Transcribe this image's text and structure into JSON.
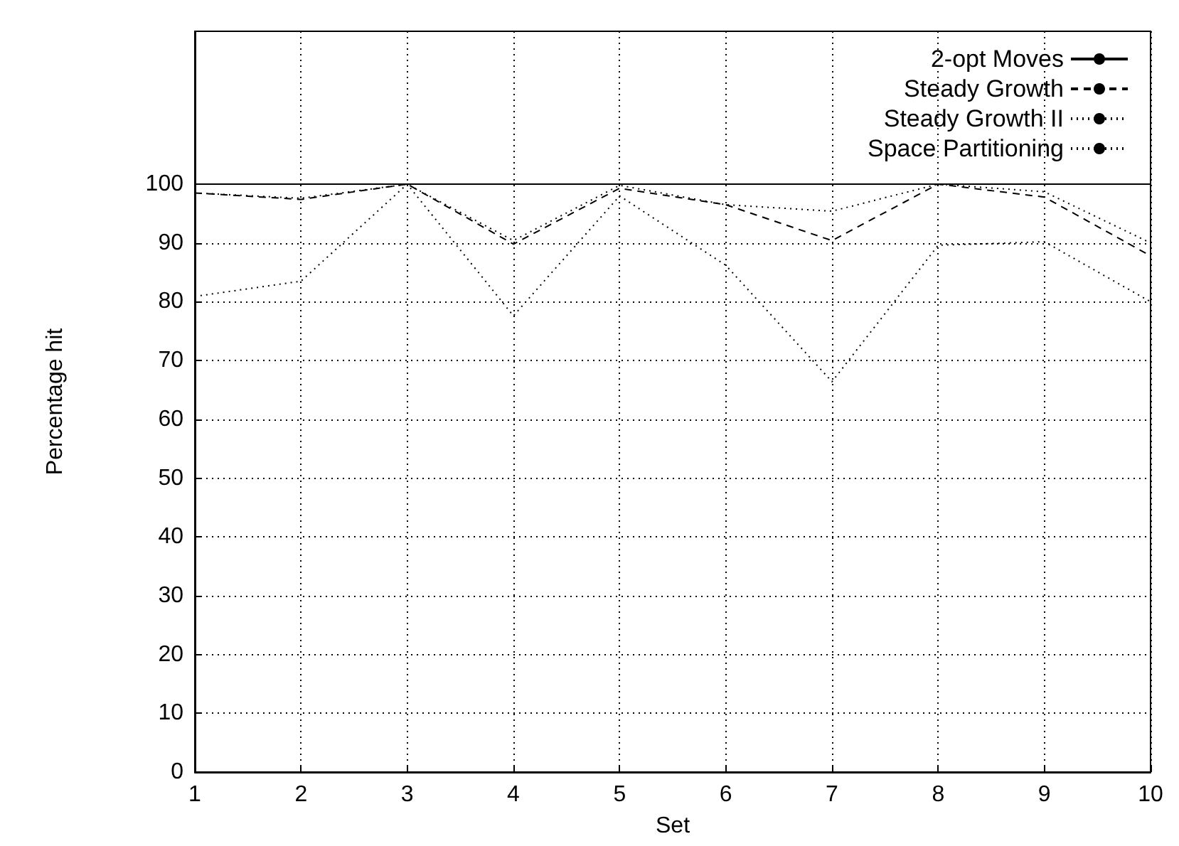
{
  "chart_data": {
    "type": "line",
    "xlabel": "Set",
    "ylabel": "Percentage hit",
    "x": [
      1,
      2,
      3,
      4,
      5,
      6,
      7,
      8,
      9,
      10
    ],
    "series": [
      {
        "name": "2-opt Moves",
        "color": "#000000",
        "line_style": "solid",
        "values": [
          100,
          100,
          100,
          100,
          100,
          100,
          100,
          100,
          100,
          100
        ]
      },
      {
        "name": "Steady Growth",
        "color": "#000000",
        "line_style": "dashed",
        "values": [
          98.5,
          97.4,
          100,
          89.8,
          99.3,
          96.5,
          90.4,
          100,
          97.8,
          87.8
        ]
      },
      {
        "name": "Steady Growth II",
        "color": "#000000",
        "line_style": "dotted",
        "values": [
          98.5,
          97.6,
          100,
          90.4,
          99.8,
          96.5,
          95.4,
          100,
          98.7,
          90
        ]
      },
      {
        "name": "Space Partitioning",
        "color": "#000000",
        "line_style": "dotted",
        "values": [
          80.9,
          83.5,
          100,
          77.6,
          98,
          86.2,
          66.4,
          89.6,
          90.2,
          80
        ]
      }
    ],
    "xlim": [
      1,
      10
    ],
    "xticks": [
      1,
      2,
      3,
      4,
      5,
      6,
      7,
      8,
      9,
      10
    ],
    "ylim": [
      0,
      126
    ],
    "yticks": [
      0,
      10,
      20,
      30,
      40,
      50,
      60,
      70,
      80,
      90,
      100
    ],
    "grid": true,
    "legend": "top right",
    "marker": "none"
  }
}
